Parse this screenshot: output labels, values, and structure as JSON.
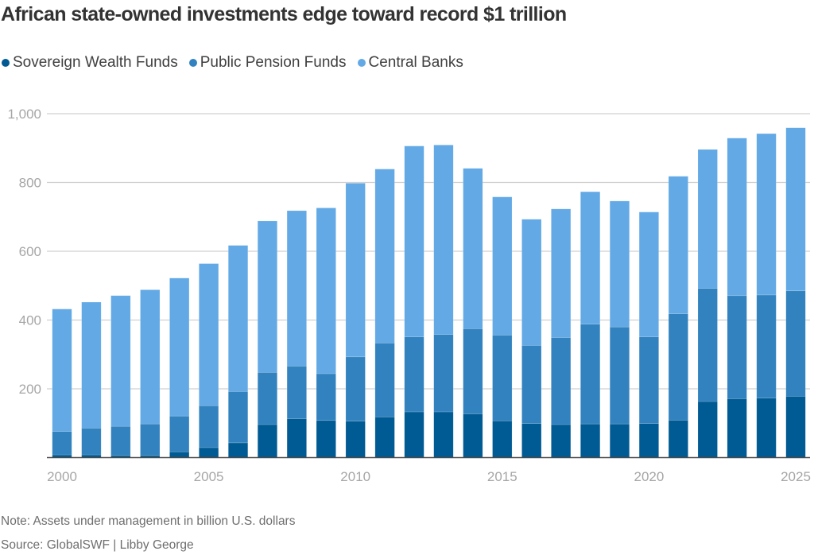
{
  "title": "African state-owned investments edge toward record $1 trillion",
  "legend": [
    {
      "label": "Sovereign Wealth Funds",
      "color": "#005a93"
    },
    {
      "label": "Public Pension Funds",
      "color": "#3282bf"
    },
    {
      "label": "Central Banks",
      "color": "#62a9e5"
    }
  ],
  "note": "Note: Assets under management in billion U.S. dollars",
  "source": "Source: GlobalSWF | Libby George",
  "chart_data": {
    "type": "bar",
    "stacked": true,
    "title": "African state-owned investments edge toward record $1 trillion",
    "xlabel": "",
    "ylabel": "",
    "unit": "billion U.S. dollars",
    "ylim": [
      0,
      1000
    ],
    "yticks": [
      0,
      200,
      400,
      600,
      800,
      1000
    ],
    "ytick_labels": [
      "",
      "200",
      "400",
      "600",
      "800",
      "1,000"
    ],
    "xtick_labels": [
      "2000",
      "2005",
      "2010",
      "2015",
      "2020",
      "2025"
    ],
    "grid": true,
    "legend_position": "top-left",
    "categories": [
      "2000",
      "2001",
      "2002",
      "2003",
      "2004",
      "2005",
      "2006",
      "2007",
      "2008",
      "2009",
      "2010",
      "2011",
      "2012",
      "2013",
      "2014",
      "2015",
      "2016",
      "2017",
      "2018",
      "2019",
      "2020",
      "2021",
      "2022",
      "2023",
      "2024",
      "2025"
    ],
    "series": [
      {
        "name": "Sovereign Wealth Funds",
        "color": "#005a93",
        "values": [
          8,
          8,
          6,
          6,
          17,
          29,
          43,
          96,
          113,
          108,
          106,
          118,
          133,
          133,
          127,
          107,
          99,
          96,
          98,
          98,
          99,
          109,
          163,
          171,
          173,
          178
        ]
      },
      {
        "name": "Public Pension Funds",
        "color": "#3282bf",
        "values": [
          68,
          78,
          85,
          92,
          104,
          122,
          149,
          152,
          153,
          136,
          187,
          215,
          218,
          225,
          248,
          249,
          227,
          253,
          290,
          282,
          252,
          309,
          329,
          300,
          300,
          307
        ]
      },
      {
        "name": "Central Banks",
        "color": "#62a9e5",
        "values": [
          356,
          366,
          380,
          390,
          401,
          413,
          425,
          440,
          452,
          482,
          505,
          506,
          555,
          551,
          466,
          402,
          367,
          374,
          385,
          366,
          363,
          400,
          404,
          458,
          469,
          474
        ]
      }
    ],
    "totals": [
      432,
      452,
      471,
      488,
      522,
      564,
      617,
      688,
      718,
      726,
      798,
      839,
      906,
      909,
      841,
      758,
      693,
      723,
      773,
      746,
      714,
      818,
      896,
      929,
      942,
      959
    ]
  }
}
